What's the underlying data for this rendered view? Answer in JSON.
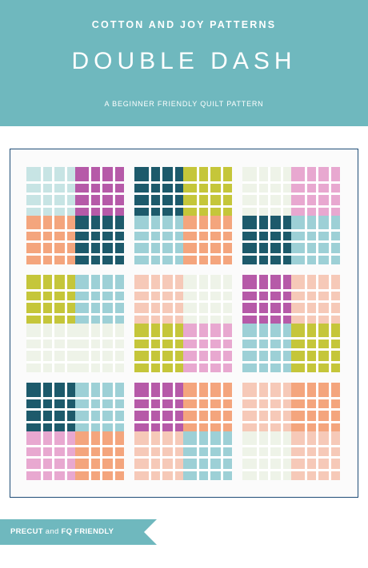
{
  "header": {
    "brand": "COTTON AND JOY PATTERNS",
    "title": "DOUBLE DASH",
    "subtitle": "A BEGINNER FRIENDLY QUILT PATTERN"
  },
  "banner": {
    "bold": "PRECUT",
    "mid": " and ",
    "bold2": "FQ FRIENDLY"
  },
  "colors": {
    "header_bg": "#6fb8be",
    "banner_bg": "#6fb8be",
    "quilt_border": "#1f4d77",
    "fabrics": {
      "A": "#c7e4e4",
      "M": "#b65aa8",
      "P": "#f4a57d",
      "T": "#1d5a6b",
      "G": "#c5c63a",
      "L": "#9dd0d6",
      "R": "#e8a8d0",
      "F": "#f6c9b8",
      "W": "#eef3e8"
    }
  },
  "quilt": {
    "blocks": [
      [
        "AM",
        "PT"
      ],
      [
        "TG",
        "LP"
      ],
      [
        "WR",
        "TL"
      ],
      [
        "GL",
        "WW"
      ],
      [
        "FW",
        "GR"
      ],
      [
        "MF",
        "LG"
      ],
      [
        "TL",
        "RP"
      ],
      [
        "MP",
        "FL"
      ],
      [
        "FP",
        "WF"
      ]
    ]
  }
}
